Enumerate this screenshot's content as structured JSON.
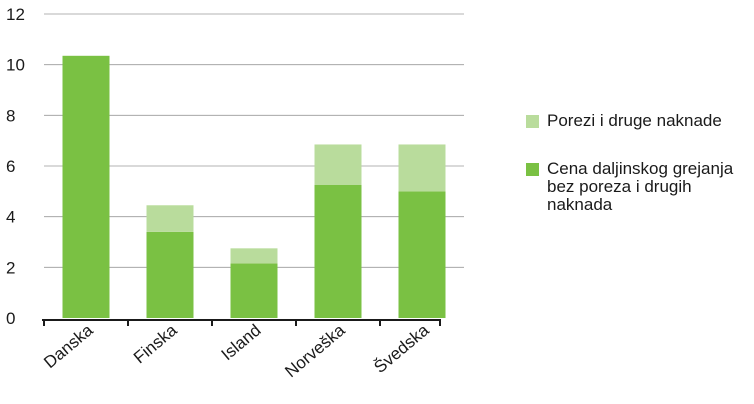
{
  "chart_data": {
    "type": "bar",
    "stacked": true,
    "categories": [
      "Danska",
      "Finska",
      "Island",
      "Norveška",
      "Švedska"
    ],
    "series": [
      {
        "name": "Cena daljinskog grejanja bez poreza i drugih naknada",
        "values": [
          10.35,
          3.4,
          2.15,
          5.25,
          5.0
        ],
        "color": "#7ac143"
      },
      {
        "name": "Porezi i druge naknade",
        "values": [
          0,
          1.05,
          0.6,
          1.6,
          1.85
        ],
        "color": "#b9dc9c"
      }
    ],
    "ylim": [
      0,
      12
    ],
    "yticks": [
      "0",
      "2",
      "4",
      "6",
      "8",
      "10",
      "12"
    ],
    "grid": true,
    "legend": "right"
  },
  "legend": [
    {
      "label": "Porezi i druge naknade",
      "color": "#b9dc9c"
    },
    {
      "label": "Cena daljinskog grejanja bez poreza i drugih naknada",
      "color": "#7ac143"
    }
  ]
}
